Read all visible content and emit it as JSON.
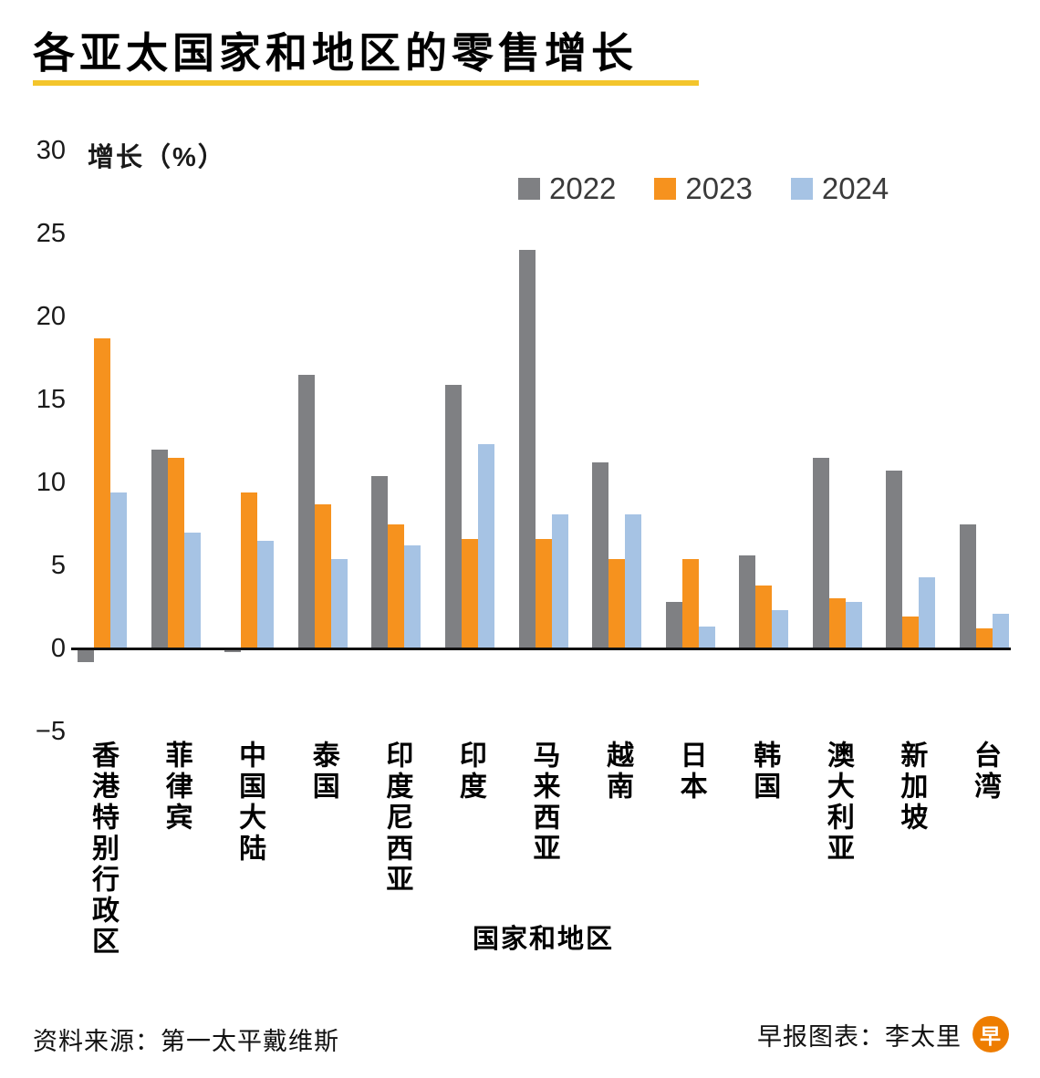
{
  "page": {
    "footer_source": "资料来源：第一太平戴维斯",
    "footer_credit": "早报图表：李太里",
    "logo_char": "早"
  },
  "chart_data": {
    "type": "bar",
    "title": "各亚太国家和地区的零售增长",
    "ylabel": "增长（%）",
    "xlabel": "国家和地区",
    "ylim": [
      -5,
      30
    ],
    "yticks": [
      30,
      25,
      20,
      15,
      10,
      5,
      0,
      -5
    ],
    "ytick_labels": [
      "30",
      "25",
      "20",
      "15",
      "10",
      "5",
      "0",
      "−5"
    ],
    "grid": false,
    "legend_position": "top",
    "categories": [
      "香港特别行政区",
      "菲律宾",
      "中国大陆",
      "泰国",
      "印度尼西亚",
      "印度",
      "马来西亚",
      "越南",
      "日本",
      "韩国",
      "澳大利亚",
      "新加坡",
      "台湾"
    ],
    "series": [
      {
        "name": "2022",
        "color": "#7f8083",
        "values": [
          -0.8,
          12.0,
          -0.2,
          16.5,
          10.4,
          15.9,
          24.0,
          11.2,
          2.8,
          5.6,
          11.5,
          10.7,
          7.5
        ]
      },
      {
        "name": "2023",
        "color": "#f6921e",
        "values": [
          18.7,
          11.5,
          9.4,
          8.7,
          7.5,
          6.6,
          6.6,
          5.4,
          5.4,
          3.8,
          3.0,
          1.9,
          1.2
        ]
      },
      {
        "name": "2024",
        "color": "#a6c3e4",
        "values": [
          9.4,
          7.0,
          6.5,
          5.4,
          6.2,
          12.3,
          8.1,
          8.1,
          1.3,
          2.3,
          2.8,
          4.3,
          2.1
        ]
      }
    ],
    "colors": {
      "accent_underline": "#f3c52c",
      "axis_line": "#111111",
      "logo": "#ee7d00"
    }
  }
}
